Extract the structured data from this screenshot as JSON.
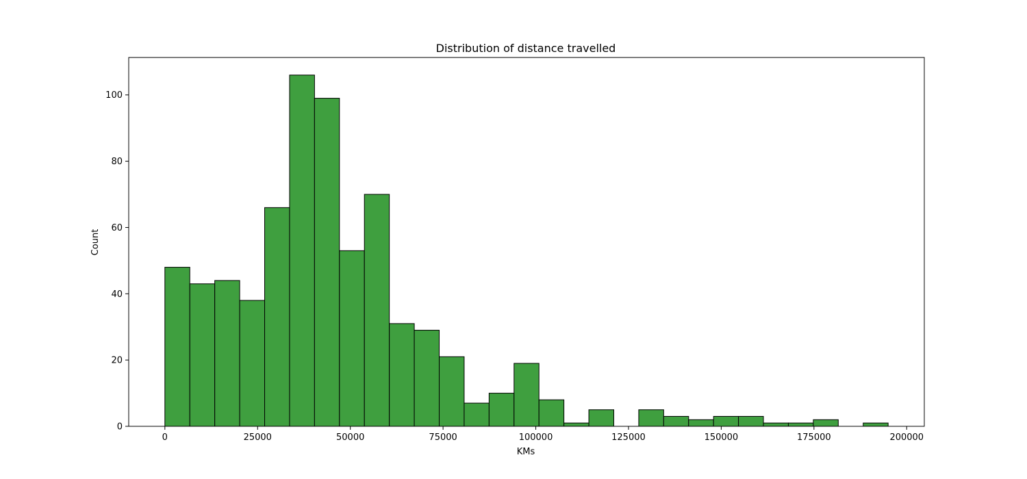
{
  "chart_data": {
    "type": "bar",
    "title": "Distribution of distance travelled",
    "xlabel": "KMs",
    "ylabel": "Count",
    "xlim": [
      -9750,
      204750
    ],
    "ylim": [
      0,
      111.3
    ],
    "x_ticks": [
      0,
      25000,
      50000,
      75000,
      100000,
      125000,
      150000,
      175000,
      200000
    ],
    "x_tick_labels": [
      "0",
      "25000",
      "50000",
      "75000",
      "100000",
      "125000",
      "150000",
      "175000",
      "200000"
    ],
    "y_ticks": [
      0,
      20,
      40,
      60,
      80,
      100
    ],
    "y_tick_labels": [
      "0",
      "20",
      "40",
      "60",
      "80",
      "100"
    ],
    "bin_edges": [
      0,
      6724,
      13448,
      20172,
      26897,
      33621,
      40345,
      47069,
      53793,
      60517,
      67241,
      73966,
      80690,
      87414,
      94138,
      100862,
      107586,
      114310,
      121034,
      127759,
      134483,
      141207,
      147931,
      154655,
      161379,
      168103,
      174828,
      181552,
      188276,
      195000
    ],
    "values": [
      48,
      43,
      44,
      38,
      66,
      106,
      99,
      53,
      70,
      31,
      29,
      21,
      7,
      10,
      19,
      8,
      1,
      5,
      0,
      5,
      3,
      2,
      3,
      3,
      1,
      1,
      2,
      0,
      1
    ],
    "bar_color": "#3f9f3f",
    "edge_color": "#000000",
    "grid": false
  }
}
